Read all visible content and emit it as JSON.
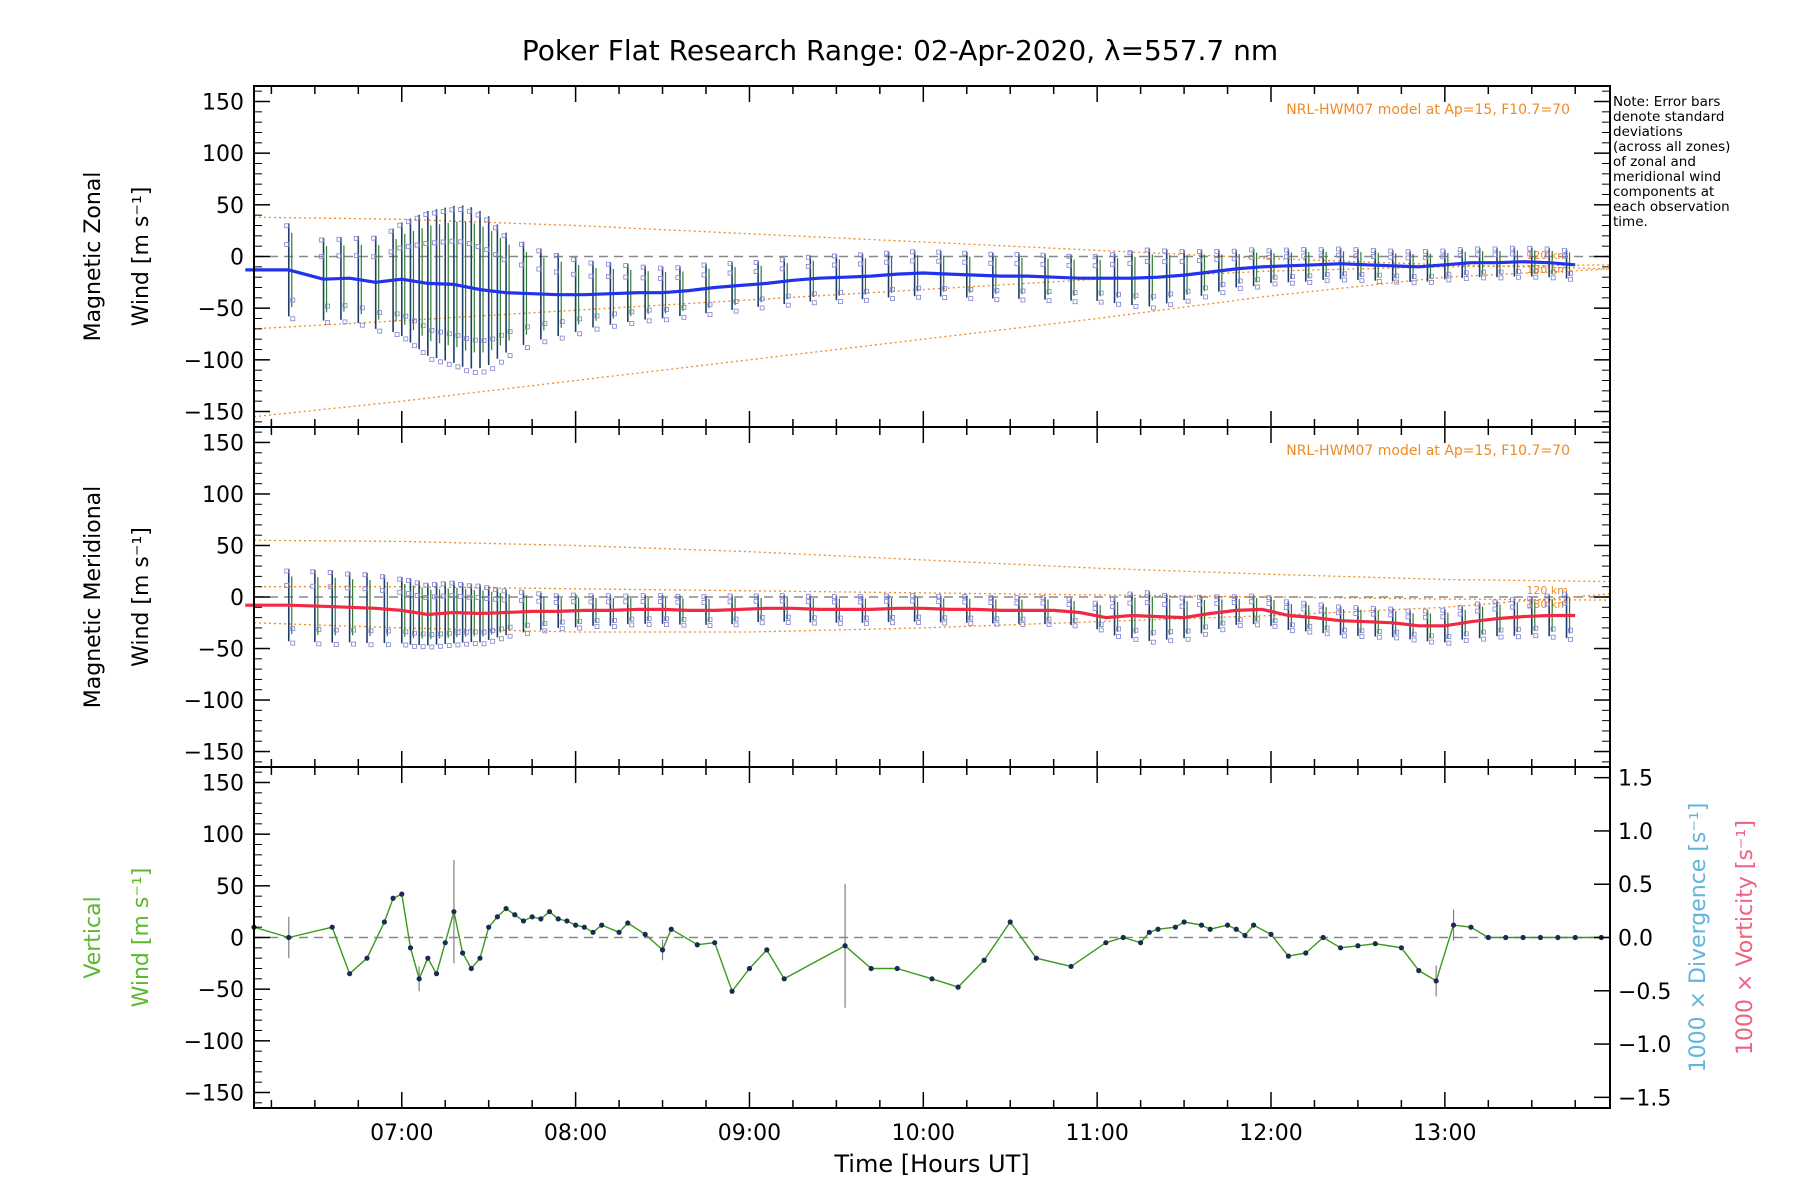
{
  "title": "Poker Flat Research Range: 02-Apr-2020, λ=557.7 nm",
  "note_lines": [
    "Note: Error bars",
    "denote standard",
    "deviations",
    "(across all zones)",
    "of zonal and",
    "meridional wind",
    "components at",
    "each observation",
    "time."
  ],
  "colors": {
    "zonal_line": "#2233ee",
    "meridional_line": "#ee2a45",
    "vertical_line": "#3a9a1a",
    "vertical_label": "#5cb82c",
    "model": "#f08a24",
    "zone_points": "#8080d0",
    "errorbar_dark": "#1f3d6b",
    "errorbar_green": "#2e7d2e",
    "divergence_label": "#5fb5dd",
    "vorticity_label": "#f06080",
    "zero_line": "#888888"
  },
  "chart_data": [
    {
      "panel": "zonal",
      "type": "line",
      "ylabel_lines": [
        "Magnetic Zonal",
        "Wind [m s⁻¹]"
      ],
      "ylim": [
        -165,
        165
      ],
      "yticks": [
        -150,
        -100,
        -50,
        0,
        50,
        100,
        150
      ],
      "xlim": [
        6.15,
        13.95
      ],
      "model_label": "NRL-HWM07 model at Ap=15, F10.7=70",
      "model_curve_labels": [
        "120 km",
        "130 km"
      ],
      "series": [
        {
          "name": "zonal",
          "x": [
            6.1,
            6.35,
            6.55,
            6.7,
            6.85,
            7.0,
            7.15,
            7.3,
            7.45,
            7.6,
            7.75,
            7.9,
            8.05,
            8.2,
            8.35,
            8.5,
            8.65,
            8.8,
            8.95,
            9.1,
            9.25,
            9.4,
            9.55,
            9.7,
            9.85,
            10.0,
            10.15,
            10.3,
            10.45,
            10.6,
            10.75,
            10.9,
            11.05,
            11.2,
            11.35,
            11.5,
            11.65,
            11.8,
            11.95,
            12.1,
            12.25,
            12.4,
            12.55,
            12.7,
            12.85,
            13.0,
            13.15,
            13.3,
            13.45,
            13.6,
            13.75
          ],
          "values": [
            -13,
            -13,
            -22,
            -21,
            -25,
            -22,
            -26,
            -27,
            -32,
            -35,
            -36,
            -37,
            -37,
            -36,
            -35,
            -35,
            -33,
            -30,
            -28,
            -26,
            -23,
            -21,
            -20,
            -19,
            -17,
            -16,
            -17,
            -18,
            -19,
            -19,
            -20,
            -21,
            -21,
            -21,
            -20,
            -18,
            -15,
            -12,
            -10,
            -9,
            -8,
            -7,
            -8,
            -9,
            -10,
            -8,
            -6,
            -6,
            -5,
            -6,
            -8
          ]
        }
      ],
      "errorbar_x": [
        6.35,
        6.55,
        6.65,
        6.75,
        6.85,
        6.95,
        7.0,
        7.05,
        7.1,
        7.15,
        7.2,
        7.25,
        7.3,
        7.35,
        7.4,
        7.45,
        7.5,
        7.55,
        7.6,
        7.7,
        7.8,
        7.9,
        8.0,
        8.1,
        8.2,
        8.3,
        8.4,
        8.5,
        8.6,
        8.75,
        8.9,
        9.05,
        9.2,
        9.35,
        9.5,
        9.65,
        9.8,
        9.95,
        10.1,
        10.25,
        10.4,
        10.55,
        10.7,
        10.85,
        11.0,
        11.1,
        11.2,
        11.3,
        11.4,
        11.5,
        11.6,
        11.7,
        11.8,
        11.9,
        12.0,
        12.1,
        12.2,
        12.3,
        12.4,
        12.5,
        12.6,
        12.7,
        12.8,
        12.9,
        13.0,
        13.1,
        13.2,
        13.3,
        13.4,
        13.5,
        13.6,
        13.7
      ],
      "errorbar_sigma": [
        45,
        40,
        40,
        42,
        45,
        50,
        55,
        60,
        65,
        70,
        72,
        74,
        76,
        78,
        78,
        76,
        72,
        65,
        58,
        50,
        44,
        40,
        36,
        32,
        30,
        28,
        26,
        25,
        24,
        24,
        23,
        22,
        22,
        22,
        22,
        22,
        22,
        22,
        22,
        22,
        22,
        22,
        22,
        22,
        22,
        24,
        26,
        28,
        26,
        24,
        22,
        20,
        18,
        18,
        16,
        16,
        16,
        15,
        15,
        15,
        15,
        15,
        15,
        15,
        14,
        14,
        14,
        14,
        14,
        14,
        14,
        14
      ],
      "model_curves": [
        {
          "x": [
            6.15,
            7.0,
            8.0,
            9.0,
            10.0,
            11.0,
            12.0,
            13.0,
            13.95
          ],
          "values": [
            38,
            36,
            30,
            22,
            14,
            6,
            -2,
            -8,
            -12
          ]
        },
        {
          "x": [
            6.15,
            7.0,
            8.0,
            9.0,
            10.0,
            11.0,
            12.0,
            13.0,
            13.95
          ],
          "values": [
            -70,
            -62,
            -52,
            -42,
            -32,
            -22,
            -14,
            -10,
            -8
          ]
        },
        {
          "x": [
            6.15,
            7.0,
            8.0,
            9.0,
            10.0,
            11.0,
            12.0,
            13.0,
            13.95
          ],
          "values": [
            -155,
            -140,
            -120,
            -100,
            -80,
            -60,
            -38,
            -20,
            -12
          ]
        }
      ]
    },
    {
      "panel": "meridional",
      "type": "line",
      "ylabel_lines": [
        "Magnetic Meridional",
        "Wind [m s⁻¹]"
      ],
      "ylim": [
        -165,
        165
      ],
      "yticks": [
        -150,
        -100,
        -50,
        0,
        50,
        100,
        150
      ],
      "xlim": [
        6.15,
        13.95
      ],
      "model_label": "NRL-HWM07 model at Ap=15, F10.7=70",
      "model_curve_labels": [
        "120 km",
        "130 km"
      ],
      "series": [
        {
          "name": "meridional",
          "x": [
            6.1,
            6.35,
            6.55,
            6.7,
            6.85,
            7.0,
            7.15,
            7.3,
            7.45,
            7.6,
            7.75,
            7.9,
            8.05,
            8.2,
            8.35,
            8.5,
            8.65,
            8.8,
            8.95,
            9.1,
            9.25,
            9.4,
            9.55,
            9.7,
            9.85,
            10.0,
            10.15,
            10.3,
            10.45,
            10.6,
            10.75,
            10.9,
            11.05,
            11.2,
            11.35,
            11.5,
            11.65,
            11.8,
            11.95,
            12.1,
            12.25,
            12.4,
            12.55,
            12.7,
            12.85,
            13.0,
            13.15,
            13.3,
            13.45,
            13.6,
            13.75
          ],
          "values": [
            -8,
            -8,
            -9,
            -10,
            -11,
            -13,
            -17,
            -15,
            -16,
            -15,
            -14,
            -14,
            -13,
            -13,
            -12,
            -12,
            -13,
            -13,
            -12,
            -11,
            -11,
            -12,
            -12,
            -12,
            -11,
            -11,
            -12,
            -12,
            -13,
            -13,
            -13,
            -15,
            -20,
            -18,
            -19,
            -20,
            -16,
            -13,
            -12,
            -18,
            -20,
            -23,
            -24,
            -25,
            -28,
            -28,
            -24,
            -21,
            -19,
            -18,
            -18
          ]
        }
      ],
      "errorbar_x": [
        6.35,
        6.5,
        6.6,
        6.7,
        6.8,
        6.9,
        7.0,
        7.05,
        7.1,
        7.15,
        7.2,
        7.25,
        7.3,
        7.35,
        7.4,
        7.45,
        7.5,
        7.55,
        7.6,
        7.7,
        7.8,
        7.9,
        8.0,
        8.1,
        8.2,
        8.3,
        8.4,
        8.5,
        8.6,
        8.75,
        8.9,
        9.05,
        9.2,
        9.35,
        9.5,
        9.65,
        9.8,
        9.95,
        10.1,
        10.25,
        10.4,
        10.55,
        10.7,
        10.85,
        11.0,
        11.1,
        11.2,
        11.3,
        11.4,
        11.5,
        11.6,
        11.7,
        11.8,
        11.9,
        12.0,
        12.1,
        12.2,
        12.3,
        12.4,
        12.5,
        12.6,
        12.7,
        12.8,
        12.9,
        13.0,
        13.1,
        13.2,
        13.3,
        13.4,
        13.5,
        13.6,
        13.7
      ],
      "errorbar_sigma": [
        35,
        35,
        35,
        34,
        34,
        33,
        32,
        32,
        31,
        30,
        30,
        30,
        30,
        29,
        28,
        28,
        26,
        24,
        22,
        20,
        18,
        16,
        16,
        15,
        15,
        14,
        14,
        14,
        14,
        14,
        14,
        13,
        13,
        13,
        13,
        13,
        13,
        13,
        13,
        13,
        13,
        13,
        13,
        13,
        13,
        18,
        22,
        24,
        22,
        20,
        18,
        16,
        14,
        14,
        14,
        14,
        14,
        14,
        14,
        14,
        14,
        14,
        14,
        15,
        16,
        16,
        17,
        17,
        18,
        18,
        20,
        22
      ],
      "model_curves": [
        {
          "x": [
            6.15,
            7.0,
            8.0,
            9.0,
            10.0,
            11.0,
            12.0,
            13.0,
            13.95
          ],
          "values": [
            55,
            54,
            50,
            44,
            36,
            28,
            22,
            17,
            15
          ]
        },
        {
          "x": [
            6.15,
            7.0,
            8.0,
            9.0,
            10.0,
            11.0,
            12.0,
            13.0,
            13.95
          ],
          "values": [
            10,
            10,
            8,
            6,
            4,
            2,
            0,
            -2,
            -3
          ]
        },
        {
          "x": [
            6.15,
            7.0,
            8.0,
            9.0,
            10.0,
            11.0,
            12.0,
            13.0,
            13.95
          ],
          "values": [
            -25,
            -30,
            -34,
            -34,
            -30,
            -24,
            -18,
            -10,
            3
          ]
        }
      ]
    },
    {
      "panel": "vertical",
      "type": "line",
      "ylabel_lines": [
        "Vertical",
        "Wind [m s⁻¹]"
      ],
      "right_label_divergence": "1000 × Divergence [s⁻¹]",
      "right_label_vorticity": "1000 × Vorticity [s⁻¹]",
      "ylim": [
        -165,
        165
      ],
      "yticks": [
        -150,
        -100,
        -50,
        0,
        50,
        100,
        150
      ],
      "right_ylim": [
        -1.6,
        1.6
      ],
      "right_yticks": [
        -1.5,
        -1.0,
        -0.5,
        0.0,
        0.5,
        1.0,
        1.5
      ],
      "right_ytick_labels": [
        "−1.5",
        "−1.0",
        "−0.5",
        "0.0",
        "0.5",
        "1.0",
        "1.5"
      ],
      "xlim": [
        6.15,
        13.95
      ],
      "xticks": [
        7,
        8,
        9,
        10,
        11,
        12,
        13
      ],
      "xtick_labels": [
        "07:00",
        "08:00",
        "09:00",
        "10:00",
        "11:00",
        "12:00",
        "13:00"
      ],
      "xlabel": "Time [Hours UT]",
      "series": [
        {
          "name": "vertical",
          "x": [
            6.15,
            6.35,
            6.6,
            6.7,
            6.8,
            6.9,
            6.95,
            7.0,
            7.05,
            7.1,
            7.15,
            7.2,
            7.25,
            7.3,
            7.35,
            7.4,
            7.45,
            7.5,
            7.55,
            7.6,
            7.65,
            7.7,
            7.75,
            7.8,
            7.85,
            7.9,
            7.95,
            8.0,
            8.05,
            8.1,
            8.15,
            8.25,
            8.3,
            8.4,
            8.5,
            8.55,
            8.7,
            8.8,
            8.9,
            9.0,
            9.1,
            9.2,
            9.55,
            9.7,
            9.85,
            10.05,
            10.2,
            10.35,
            10.5,
            10.65,
            10.85,
            11.05,
            11.15,
            11.25,
            11.3,
            11.35,
            11.45,
            11.5,
            11.6,
            11.65,
            11.75,
            11.8,
            11.85,
            11.9,
            12.0,
            12.1,
            12.2,
            12.3,
            12.4,
            12.5,
            12.6,
            12.75,
            12.85,
            12.95,
            13.05,
            13.15,
            13.25,
            13.35,
            13.45,
            13.55,
            13.65,
            13.75,
            13.9
          ],
          "values": [
            10,
            0,
            10,
            -35,
            -20,
            15,
            38,
            42,
            -10,
            -40,
            -20,
            -35,
            -5,
            25,
            -15,
            -30,
            -20,
            10,
            20,
            28,
            22,
            16,
            20,
            18,
            25,
            18,
            16,
            12,
            10,
            5,
            12,
            5,
            14,
            3,
            -12,
            8,
            -7,
            -5,
            -52,
            -30,
            -12,
            -40,
            -8,
            -30,
            -30,
            -40,
            -48,
            -22,
            15,
            -20,
            -28,
            -5,
            0,
            -5,
            5,
            8,
            10,
            15,
            12,
            8,
            12,
            8,
            2,
            12,
            3,
            -18,
            -15,
            0,
            -10,
            -8,
            -6,
            -10,
            -32,
            -42,
            12,
            10,
            0,
            0,
            0,
            0,
            0,
            0,
            0
          ],
          "sigma": [
            0,
            20,
            0,
            0,
            0,
            0,
            0,
            0,
            0,
            12,
            0,
            0,
            0,
            50,
            0,
            0,
            0,
            0,
            0,
            0,
            0,
            0,
            0,
            0,
            0,
            0,
            0,
            0,
            0,
            0,
            0,
            0,
            0,
            0,
            10,
            0,
            0,
            0,
            0,
            0,
            0,
            0,
            60,
            0,
            0,
            0,
            0,
            0,
            0,
            0,
            0,
            0,
            0,
            0,
            0,
            0,
            0,
            0,
            0,
            0,
            0,
            0,
            0,
            0,
            0,
            0,
            0,
            0,
            0,
            0,
            0,
            0,
            0,
            15,
            15,
            0,
            0,
            0,
            0,
            0,
            0,
            0,
            0
          ]
        }
      ]
    }
  ]
}
